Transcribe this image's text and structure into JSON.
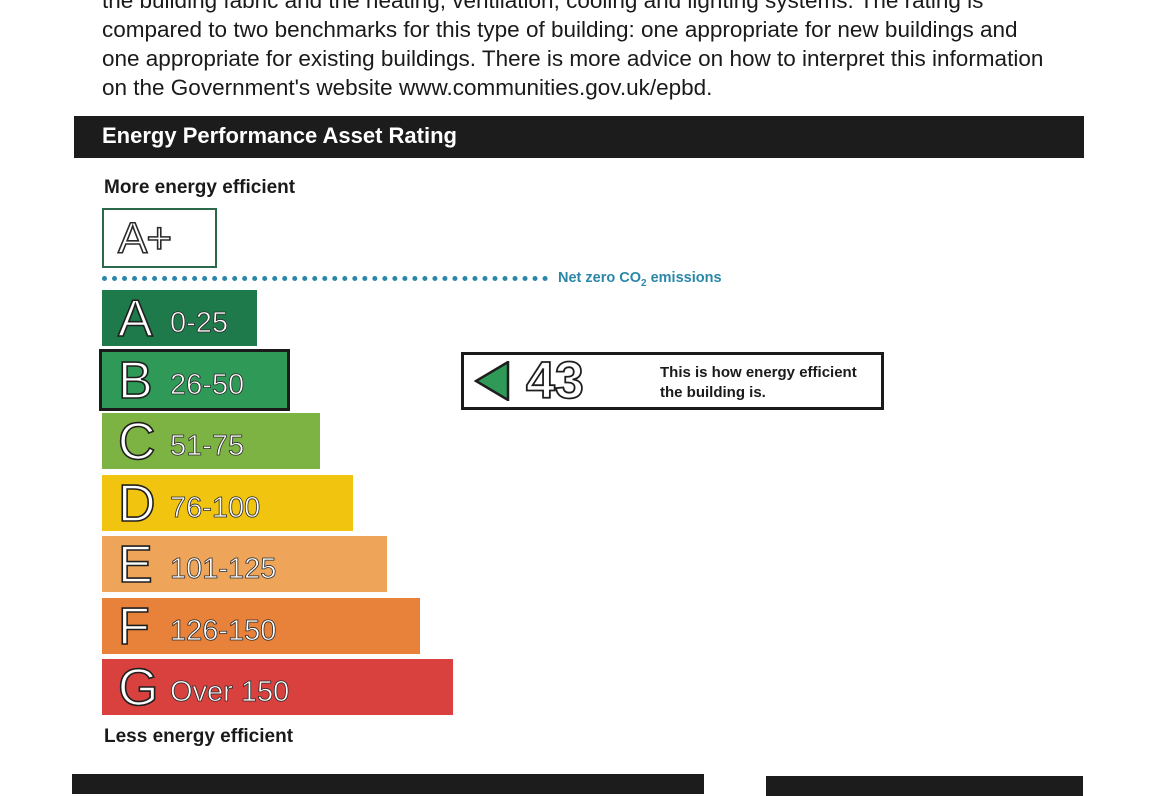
{
  "intro": {
    "lines": [
      "the building fabric and the heating, ventilation, cooling and lighting systems. The rating is",
      "compared to two benchmarks for this type of building: one appropriate for new buildings and",
      "one appropriate for existing buildings. There is more advice on how to interpret this information",
      "on the Government's website www.communities.gov.uk/epbd."
    ]
  },
  "section": {
    "title": "Energy Performance Asset Rating"
  },
  "labels": {
    "more": "More energy efficient",
    "less": "Less energy efficient"
  },
  "aplus": {
    "label": "A+"
  },
  "netzero": {
    "label": "Net zero CO",
    "subscript": "2",
    "suffix": " emissions"
  },
  "bands": [
    {
      "letter": "A",
      "range": "0-25",
      "color": "#1f7a4b",
      "length_fraction": 0.155
    },
    {
      "letter": "B",
      "range": "26-50",
      "color": "#2f9a58",
      "length_fraction": 0.185
    },
    {
      "letter": "C",
      "range": "51-75",
      "color": "#7cb342",
      "length_fraction": 0.218
    },
    {
      "letter": "D",
      "range": "76-100",
      "color": "#f1c40f",
      "length_fraction": 0.251
    },
    {
      "letter": "E",
      "range": "101-125",
      "color": "#eea55a",
      "length_fraction": 0.285
    },
    {
      "letter": "F",
      "range": "126-150",
      "color": "#e8823a",
      "length_fraction": 0.318
    },
    {
      "letter": "G",
      "range": "Over 150",
      "color": "#d9413e",
      "length_fraction": 0.351
    }
  ],
  "rating": {
    "value": "43",
    "current_band": "B",
    "arrow_color": "#2f9a58",
    "description_line1": "This is how energy efficient",
    "description_line2": "the building is."
  }
}
